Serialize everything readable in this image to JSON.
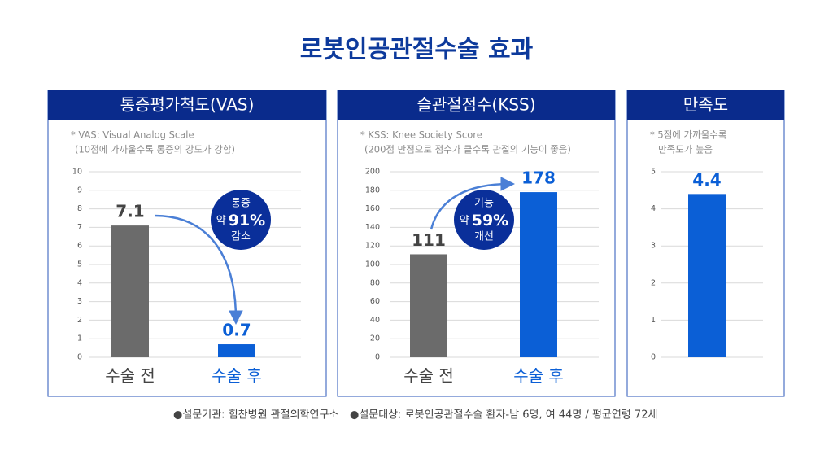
{
  "title": "로봇인공관절수술 효과",
  "chart_data": [
    {
      "type": "bar",
      "title": "통증평가척도(VAS)",
      "notes": [
        "* VAS: Visual Analog Scale",
        "(10점에 가까울수록 통증의 강도가 강함)"
      ],
      "categories": [
        "수술 전",
        "수술 후"
      ],
      "values": [
        7.1,
        0.7
      ],
      "colors": [
        "#6b6b6b",
        "#0b5fd6"
      ],
      "ylim": [
        0,
        10
      ],
      "yticks": [
        0,
        1,
        2,
        3,
        4,
        5,
        6,
        7,
        8,
        9,
        10
      ],
      "grid": true,
      "annotation": [
        "통증",
        "약",
        "91%",
        "감소"
      ]
    },
    {
      "type": "bar",
      "title": "슬관절점수(KSS)",
      "notes": [
        "* KSS: Knee Society Score",
        "(200점 만점으로 점수가 클수록 관절의 기능이 좋음)"
      ],
      "categories": [
        "수술 전",
        "수술 후"
      ],
      "values": [
        111,
        178
      ],
      "colors": [
        "#6b6b6b",
        "#0b5fd6"
      ],
      "ylim": [
        0,
        200
      ],
      "yticks": [
        0,
        20,
        40,
        60,
        80,
        100,
        120,
        140,
        160,
        180,
        200
      ],
      "grid": true,
      "annotation": [
        "기능",
        "약",
        "59%",
        "개선"
      ]
    },
    {
      "type": "bar",
      "title": "만족도",
      "notes": [
        "* 5점에 가까울수록",
        "만족도가 높음"
      ],
      "categories": [
        null
      ],
      "values": [
        4.4
      ],
      "colors": [
        "#0b5fd6"
      ],
      "ylim": [
        0,
        5
      ],
      "yticks": [
        0,
        1,
        2,
        3,
        4,
        5
      ],
      "grid": true
    }
  ],
  "footer": [
    "●설문기관: 힘찬병원 관절의학연구소",
    "●설문대상: 로봇인공관절수술 환자-남 6명, 여 44명 / 평균연령 72세"
  ]
}
